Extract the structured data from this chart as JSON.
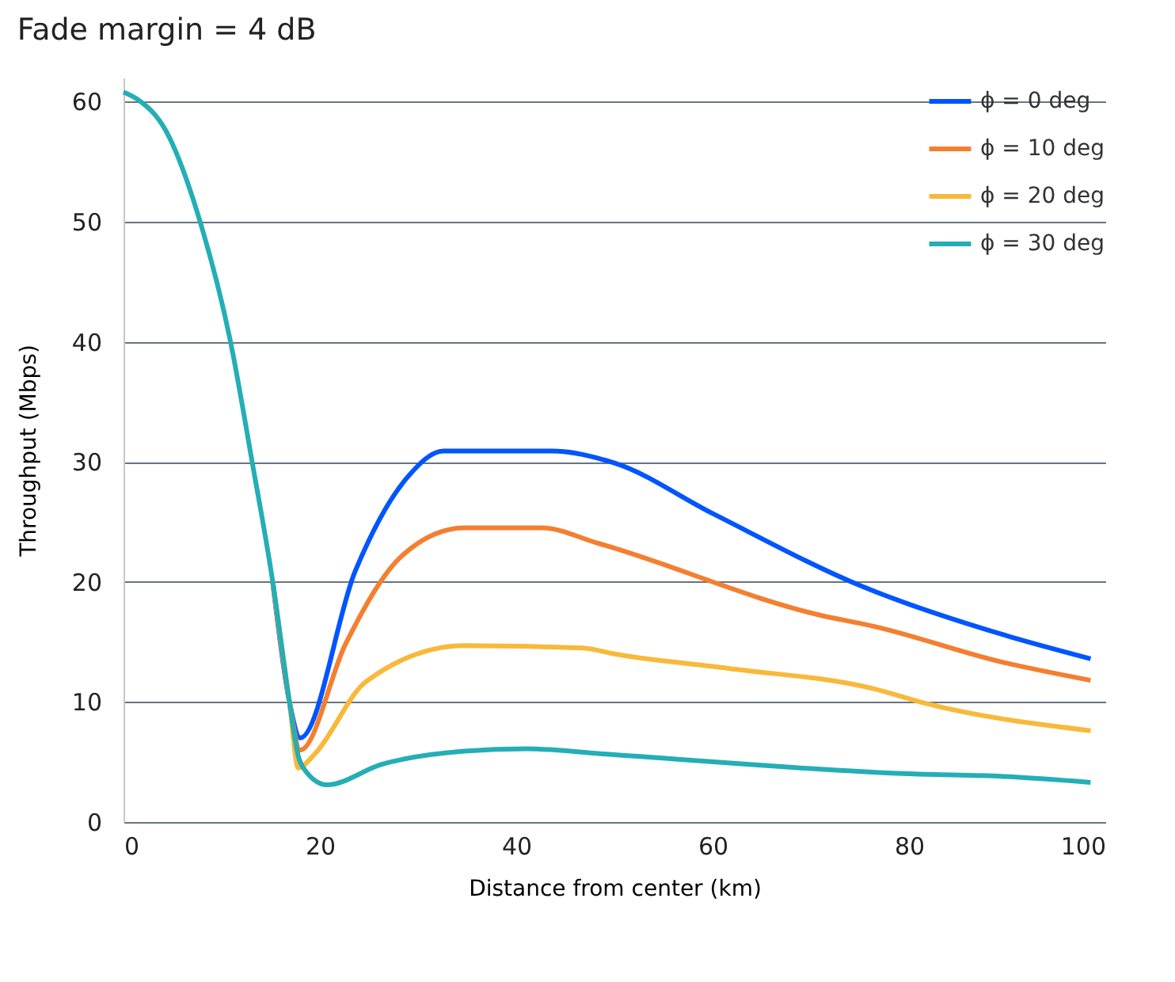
{
  "chart_data": {
    "type": "line",
    "title": "Fade margin = 4 dB",
    "xlabel": "Distance from center (km)",
    "ylabel": "Throughput (Mbps)",
    "xlim": [
      0,
      100
    ],
    "xticks": [
      0,
      20,
      40,
      60,
      80,
      100
    ],
    "ylim": [
      0,
      62
    ],
    "yticks": [
      0,
      10,
      20,
      30,
      40,
      50,
      60
    ],
    "grid": "y",
    "legend": "top right",
    "marker": "none",
    "line_style": "solid",
    "series": [
      {
        "name": "ϕ = 0 deg",
        "color": "#0055ff",
        "x": [
          15.2,
          16.9,
          18,
          23.6,
          28.9,
          32.6,
          43.7,
          50,
          60,
          75.3,
          89.6,
          98.5
        ],
        "values": [
          20,
          10,
          7,
          20.9,
          28.7,
          30.9,
          30.9,
          29.9,
          25.7,
          19.6,
          15.6,
          13.6
        ]
      },
      {
        "name": "ϕ = 10 deg",
        "color": "#f47f30",
        "x": [
          15.2,
          16.9,
          18,
          22.6,
          28.4,
          34.7,
          42.6,
          48.4,
          71.1,
          76.4,
          89.6,
          98.5
        ],
        "values": [
          20,
          10,
          6,
          14.8,
          22.2,
          24.5,
          24.5,
          23.2,
          17.2,
          16.3,
          13.3,
          11.8
        ]
      },
      {
        "name": "ϕ = 20 deg",
        "color": "#f8b93a",
        "x": [
          15.2,
          16.9,
          17.8,
          19.4,
          24.7,
          34.7,
          46.8,
          50,
          61.6,
          76.4,
          81.6,
          98.5
        ],
        "values": [
          20,
          10,
          4.5,
          5.6,
          11.7,
          14.7,
          14.5,
          14.0,
          12.8,
          11.1,
          9.9,
          7.6
        ]
      },
      {
        "name": "ϕ = 30 deg",
        "color": "#24aeb5",
        "x": [
          0,
          1.4,
          4.3,
          7.8,
          10.9,
          13.1,
          15.2,
          16.9,
          17.8,
          18.4,
          20.7,
          26.3,
          34.7,
          41,
          50,
          80.5,
          89.6,
          98.5
        ],
        "values": [
          60.8,
          60.2,
          57.6,
          50,
          40,
          30,
          20,
          10,
          5.5,
          4.4,
          3.1,
          4.8,
          5.9,
          6.1,
          5.6,
          4.0,
          3.8,
          3.3
        ]
      }
    ]
  }
}
